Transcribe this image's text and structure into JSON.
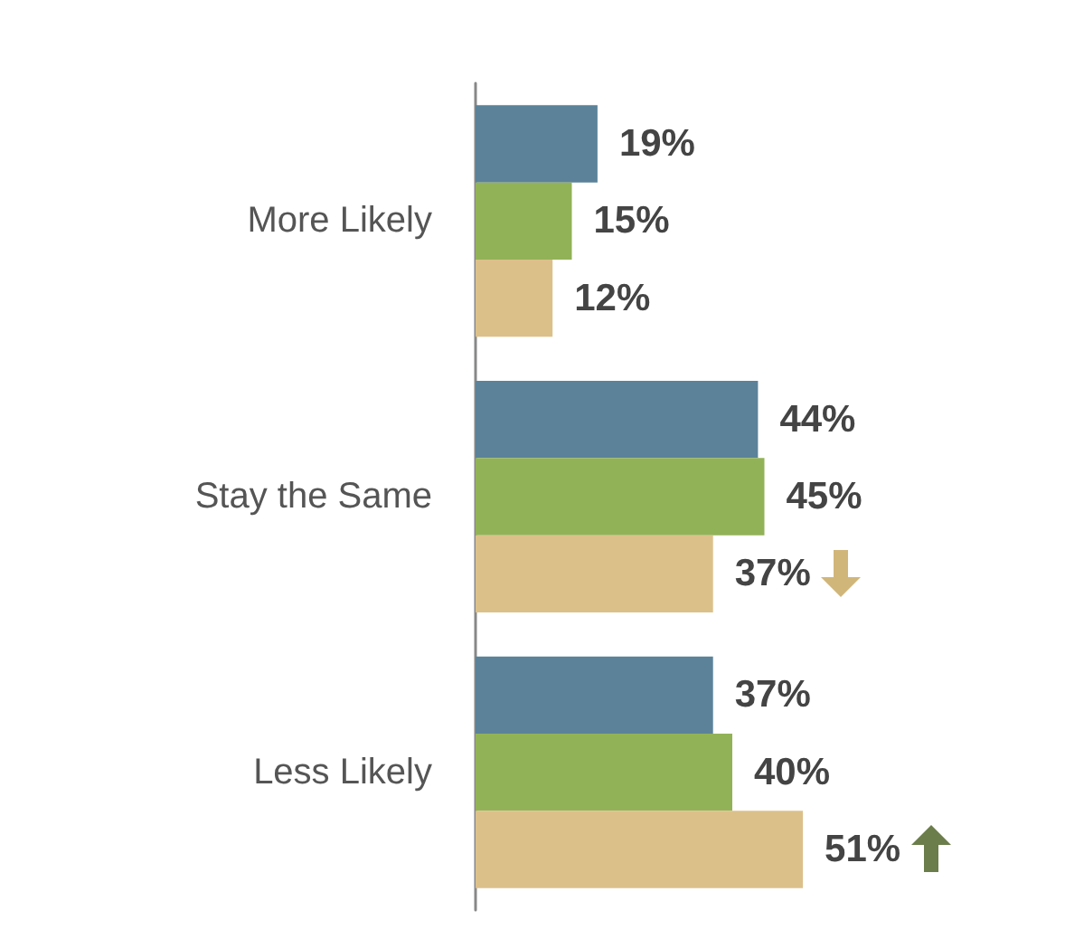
{
  "chart_data": {
    "type": "bar",
    "orientation": "horizontal",
    "categories": [
      "More Likely",
      "Stay the Same",
      "Less Likely"
    ],
    "series": [
      {
        "color": "#5b8299",
        "values": [
          19,
          44,
          37
        ],
        "value_labels": [
          "19%",
          "44%",
          "37%"
        ]
      },
      {
        "color": "#92b257",
        "values": [
          15,
          45,
          40
        ],
        "value_labels": [
          "15%",
          "45%",
          "40%"
        ]
      },
      {
        "color": "#dcc08a",
        "values": [
          12,
          37,
          51
        ],
        "value_labels": [
          "12%",
          "37%",
          "51%"
        ]
      }
    ]
  }
}
